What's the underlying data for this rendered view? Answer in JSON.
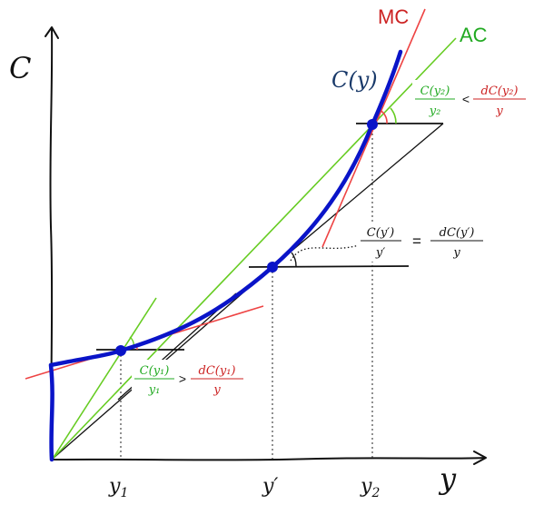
{
  "labels": {
    "y_axis": "C",
    "x_axis": "y",
    "cost_curve": "C(y)",
    "mc": "MC",
    "ac": "AC",
    "tick_y1": "y",
    "tick_y1_sub": "1",
    "tick_yprime": "y′",
    "tick_y2": "y",
    "tick_y2_sub": "2"
  },
  "annotations": {
    "y1": {
      "lhs_num": "C(y₁)",
      "lhs_den": "y₁",
      "relation": ">",
      "rhs_num": "dC(y₁)",
      "rhs_den": "y"
    },
    "yprime": {
      "lhs_num": "C(y′)",
      "lhs_den": "y′",
      "relation": "=",
      "rhs_num": "dC(y′)",
      "rhs_den": "y"
    },
    "y2": {
      "lhs_num": "C(y₂)",
      "lhs_den": "y₂",
      "relation": "<",
      "rhs_num": "dC(y₂)",
      "rhs_den": "y"
    }
  },
  "colors": {
    "cost_curve": "#0a14c8",
    "mc": "#ee4444",
    "ac": "#66cc22",
    "ac_text": "#22aa22",
    "mc_text": "#cc2222",
    "cost_label": "#1a3a6a",
    "axis": "#111111"
  }
}
